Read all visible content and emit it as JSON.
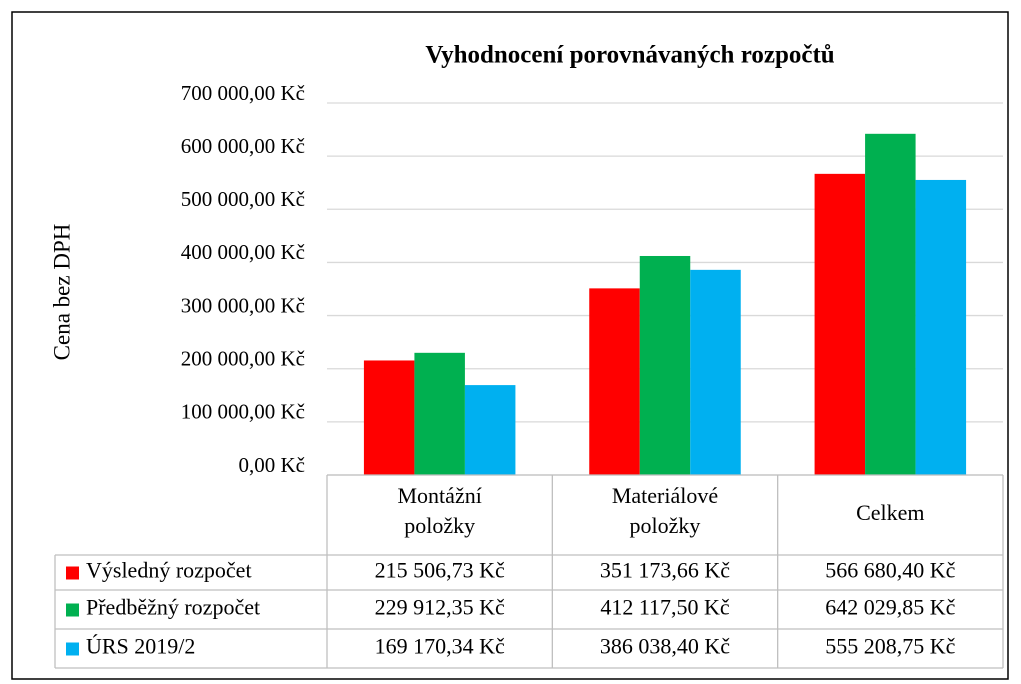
{
  "chart_data": {
    "type": "bar",
    "title": "Vyhodnocení porovnávaných rozpočtů",
    "y_label": "Cena bez DPH",
    "categories": [
      "Montážní položky",
      "Materiálové položky",
      "Celkem"
    ],
    "series": [
      {
        "name": "Výsledný rozpočet",
        "color": "#ff0000",
        "values": [
          215506.73,
          351173.66,
          566680.4
        ],
        "value_labels": [
          "215 506,73 Kč",
          "351 173,66 Kč",
          "566 680,40 Kč"
        ]
      },
      {
        "name": "Předběžný rozpočet",
        "color": "#00b050",
        "values": [
          229912.35,
          412117.5,
          642029.85
        ],
        "value_labels": [
          "229 912,35 Kč",
          "412 117,50 Kč",
          "642 029,85 Kč"
        ]
      },
      {
        "name": "ÚRS 2019/2",
        "color": "#00b0f0",
        "values": [
          169170.34,
          386038.4,
          555208.75
        ],
        "value_labels": [
          "169 170,34 Kč",
          "386 038,40 Kč",
          "555 208,75 Kč"
        ]
      }
    ],
    "ylim": [
      0,
      700000
    ],
    "yticks": [
      {
        "value": 0,
        "label": "0,00 Kč"
      },
      {
        "value": 100000,
        "label": "100 000,00 Kč"
      },
      {
        "value": 200000,
        "label": "200 000,00 Kč"
      },
      {
        "value": 300000,
        "label": "300 000,00 Kč"
      },
      {
        "value": 400000,
        "label": "400 000,00 Kč"
      },
      {
        "value": 500000,
        "label": "500 000,00 Kč"
      },
      {
        "value": 600000,
        "label": "600 000,00 Kč"
      },
      {
        "value": 700000,
        "label": "700 000,00 Kč"
      }
    ],
    "grid": true
  }
}
